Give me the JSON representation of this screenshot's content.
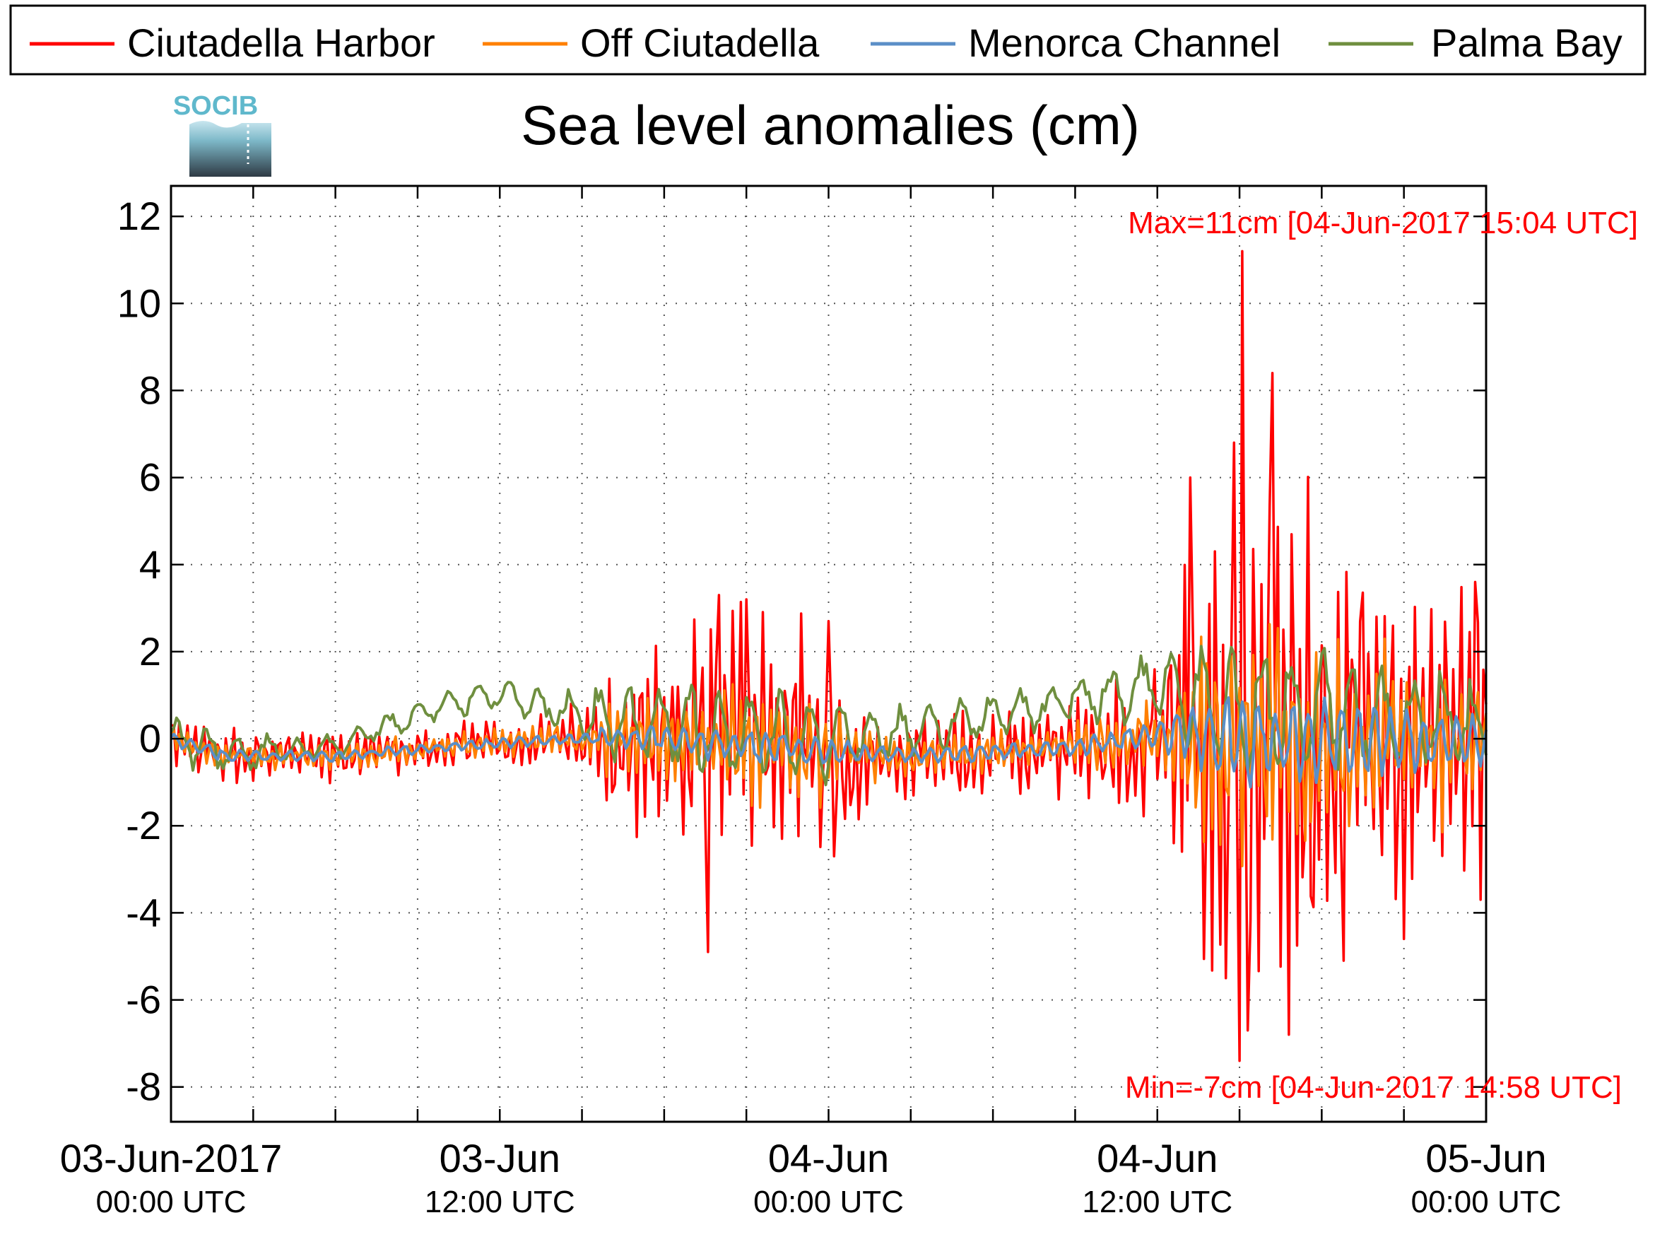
{
  "chart_data": {
    "type": "line",
    "title": "Sea level anomalies (cm)",
    "logo_text": "SOCIB",
    "xlabel": "",
    "ylabel": "",
    "ylim": [
      -8.8,
      12.7
    ],
    "yticks": [
      -8,
      -6,
      -4,
      -2,
      0,
      2,
      4,
      6,
      8,
      10,
      12
    ],
    "x_range_hours": [
      0,
      48
    ],
    "x_minor_tick_hours": [
      3,
      6,
      9,
      12,
      15,
      18,
      21,
      24,
      27,
      30,
      33,
      36,
      39,
      42,
      45
    ],
    "x_ticks": [
      {
        "hour": 0,
        "date": "03-Jun-2017",
        "time": "00:00 UTC"
      },
      {
        "hour": 12,
        "date": "03-Jun",
        "time": "12:00 UTC"
      },
      {
        "hour": 24,
        "date": "04-Jun",
        "time": "00:00 UTC"
      },
      {
        "hour": 36,
        "date": "04-Jun",
        "time": "12:00 UTC"
      },
      {
        "hour": 48,
        "date": "05-Jun",
        "time": "00:00 UTC"
      }
    ],
    "grid": true,
    "legend_position": "top",
    "series": [
      {
        "name": "Ciutadella Harbor",
        "color": "#ff0000"
      },
      {
        "name": "Off Ciutadella",
        "color": "#ff8000"
      },
      {
        "name": "Menorca Channel",
        "color": "#5b8fc7"
      },
      {
        "name": "Palma Bay",
        "color": "#6f8f3f"
      }
    ],
    "annotations": [
      {
        "label": "Max=11cm [04-Jun-2017 15:04 UTC]",
        "color": "#ff0000",
        "position": "top-right"
      },
      {
        "label": "Min=-7cm [04-Jun-2017 14:58 UTC]",
        "color": "#ff0000",
        "position": "bottom-right"
      }
    ],
    "extremes": {
      "max": {
        "hour": 39.07,
        "value": 11.2
      },
      "min": {
        "hour": 38.97,
        "value": -7.4
      }
    },
    "envelope": [
      {
        "hour": 0,
        "harbor": 0.8,
        "off": 0.3,
        "channel": 0.15,
        "palma": 0.6
      },
      {
        "hour": 2,
        "harbor": 0.6,
        "off": 0.3,
        "channel": 0.15,
        "palma": 0.5
      },
      {
        "hour": 4,
        "harbor": 0.5,
        "off": 0.3,
        "channel": 0.12,
        "palma": 0.3
      },
      {
        "hour": 8,
        "harbor": 0.5,
        "off": 0.3,
        "channel": 0.12,
        "palma": 0.3
      },
      {
        "hour": 12,
        "harbor": 0.5,
        "off": 0.3,
        "channel": 0.12,
        "palma": 0.4
      },
      {
        "hour": 15,
        "harbor": 0.6,
        "off": 0.4,
        "channel": 0.15,
        "palma": 0.5
      },
      {
        "hour": 16,
        "harbor": 1.6,
        "off": 0.8,
        "channel": 0.25,
        "palma": 0.9
      },
      {
        "hour": 18,
        "harbor": 1.8,
        "off": 0.9,
        "channel": 0.3,
        "palma": 1.0
      },
      {
        "hour": 19.5,
        "harbor": 2.6,
        "off": 1.2,
        "channel": 0.4,
        "palma": 1.0
      },
      {
        "hour": 21,
        "harbor": 2.8,
        "off": 1.3,
        "channel": 0.4,
        "palma": 1.0
      },
      {
        "hour": 23.5,
        "harbor": 2.4,
        "off": 1.1,
        "channel": 0.35,
        "palma": 1.0
      },
      {
        "hour": 25,
        "harbor": 1.2,
        "off": 0.6,
        "channel": 0.25,
        "palma": 0.7
      },
      {
        "hour": 29,
        "harbor": 0.8,
        "off": 0.4,
        "channel": 0.2,
        "palma": 0.5
      },
      {
        "hour": 32,
        "harbor": 0.8,
        "off": 0.4,
        "channel": 0.2,
        "palma": 0.5
      },
      {
        "hour": 33.5,
        "harbor": 1.6,
        "off": 0.6,
        "channel": 0.25,
        "palma": 0.6
      },
      {
        "hour": 36,
        "harbor": 1.8,
        "off": 0.7,
        "channel": 0.3,
        "palma": 0.7
      },
      {
        "hour": 37.5,
        "harbor": 4.5,
        "off": 2.2,
        "channel": 0.9,
        "palma": 1.3
      },
      {
        "hour": 39,
        "harbor": 5.5,
        "off": 2.8,
        "channel": 1.1,
        "palma": 1.5
      },
      {
        "hour": 41.5,
        "harbor": 5.0,
        "off": 2.4,
        "channel": 1.0,
        "palma": 1.4
      },
      {
        "hour": 44,
        "harbor": 3.6,
        "off": 1.8,
        "channel": 0.8,
        "palma": 1.2
      },
      {
        "hour": 48,
        "harbor": 3.0,
        "off": 1.5,
        "channel": 0.6,
        "palma": 1.0
      }
    ],
    "baseline": [
      {
        "hour": 0,
        "common": 0.0,
        "palma": 0.0
      },
      {
        "hour": 2,
        "common": -0.4,
        "palma": -0.3
      },
      {
        "hour": 6,
        "common": -0.4,
        "palma": -0.2
      },
      {
        "hour": 8,
        "common": -0.3,
        "palma": 0.3
      },
      {
        "hour": 10,
        "common": -0.2,
        "palma": 0.8
      },
      {
        "hour": 12,
        "common": -0.1,
        "palma": 1.0
      },
      {
        "hour": 15,
        "common": 0.0,
        "palma": 0.5
      },
      {
        "hour": 18,
        "common": 0.0,
        "palma": 0.2
      },
      {
        "hour": 24,
        "common": -0.3,
        "palma": 0.0
      },
      {
        "hour": 27,
        "common": -0.4,
        "palma": 0.2
      },
      {
        "hour": 30,
        "common": -0.3,
        "palma": 0.5
      },
      {
        "hour": 33,
        "common": -0.2,
        "palma": 0.9
      },
      {
        "hour": 36,
        "common": 0.1,
        "palma": 1.2
      },
      {
        "hour": 39,
        "common": 0.0,
        "palma": 0.8
      },
      {
        "hour": 48,
        "common": 0.0,
        "palma": 0.3
      }
    ],
    "spikes": [
      {
        "hour": 20.0,
        "value": 3.3
      },
      {
        "hour": 19.6,
        "value": -4.9
      },
      {
        "hour": 21.0,
        "value": 3.2
      },
      {
        "hour": 24.0,
        "value": 2.7
      },
      {
        "hour": 24.2,
        "value": -2.7
      },
      {
        "hour": 37.2,
        "value": 6.0
      },
      {
        "hour": 38.5,
        "value": -5.5
      },
      {
        "hour": 38.8,
        "value": 6.8
      },
      {
        "hour": 39.3,
        "value": -6.7
      },
      {
        "hour": 40.2,
        "value": 8.4
      },
      {
        "hour": 40.8,
        "value": -6.8
      },
      {
        "hour": 42.8,
        "value": -5.1
      },
      {
        "hour": 45.0,
        "value": -4.6
      },
      {
        "hour": 47.6,
        "value": 3.6
      }
    ]
  }
}
